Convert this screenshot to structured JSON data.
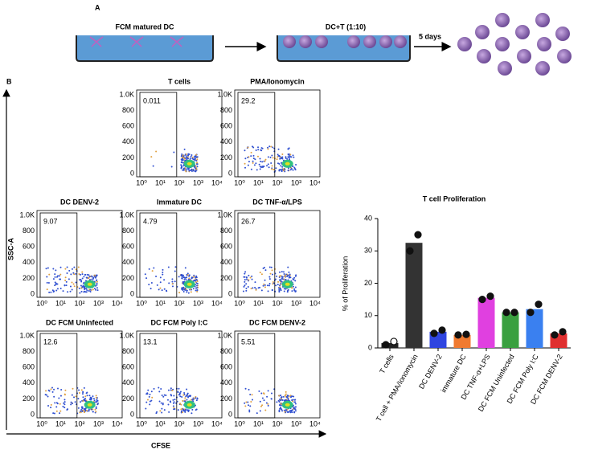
{
  "panel_a": {
    "label": "A",
    "step1": "FCM matured DC",
    "step2": "DC+T (1:10)",
    "arrow": "5 days"
  },
  "panel_b": {
    "label": "B",
    "y_axis_label": "SSC-A",
    "x_axis_label": "CFSE",
    "plot_yticks": [
      "0",
      "200",
      "400",
      "600",
      "800",
      "1.0K"
    ],
    "plot_xticks": [
      "10⁰",
      "10¹",
      "10²",
      "10³",
      "10⁴"
    ],
    "plots": [
      {
        "title": "T cells",
        "gate": 0.011
      },
      {
        "title": "PMA/Ionomycin",
        "gate": 29.2
      },
      {
        "title": "DC DENV-2",
        "gate": 9.07
      },
      {
        "title": "Immature DC",
        "gate": 4.79
      },
      {
        "title": "DC TNF-α/LPS",
        "gate": 26.7
      },
      {
        "title": "DC FCM Uninfected",
        "gate": 12.6
      },
      {
        "title": "DC FCM Poly I:C",
        "gate": 13.1
      },
      {
        "title": "DC FCM DENV-2",
        "gate": 5.51
      }
    ]
  },
  "chart_data": {
    "type": "bar",
    "title": "T cell Proliferation",
    "y_label": "% of Proliferation",
    "categories": [
      "T cells",
      "T cell + PMA/Ionomycin",
      "DC DENV-2",
      "immature DC",
      "DC TNF-α+LPS",
      "DC FCM Uninfected",
      "DC FCM Poly I:C",
      "DC FCM DENV-2"
    ],
    "values": [
      1.5,
      32.5,
      5,
      4,
      15.5,
      11,
      12,
      4.5
    ],
    "colors": [
      "#222222",
      "#333333",
      "#2f45e0",
      "#f07a30",
      "#e040e0",
      "#3aa040",
      "#3a80f0",
      "#e03030"
    ],
    "points": [
      [
        1,
        2
      ],
      [
        30,
        35
      ],
      [
        4.5,
        5.5
      ],
      [
        4,
        4.2
      ],
      [
        15,
        16
      ],
      [
        11,
        11
      ],
      [
        11,
        13.5
      ],
      [
        4,
        5
      ]
    ],
    "ylim": [
      0,
      40
    ],
    "yticks": [
      0,
      10,
      20,
      30,
      40
    ]
  }
}
